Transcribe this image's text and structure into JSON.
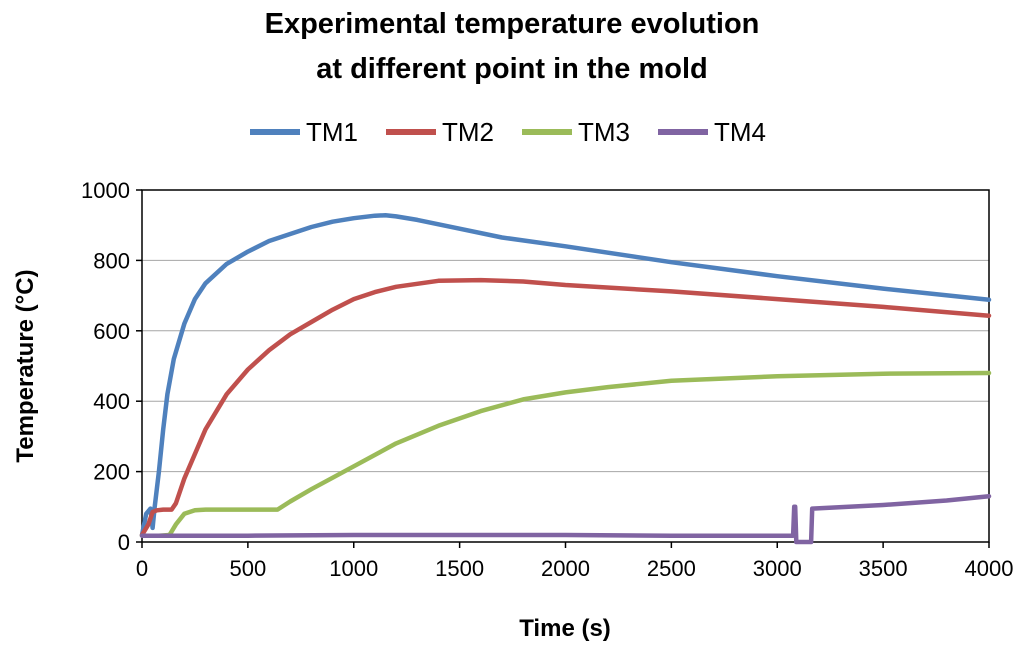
{
  "chart_data": {
    "type": "line",
    "title_lines": [
      "Experimental temperature evolution",
      "at different point in the mold"
    ],
    "xlabel": "Time (s)",
    "ylabel": "Temperature (°C)",
    "xlim": [
      0,
      4000
    ],
    "ylim": [
      0,
      1000
    ],
    "x_ticks": [
      "0",
      "500",
      "1000",
      "1500",
      "2000",
      "2500",
      "3000",
      "3500",
      "4000"
    ],
    "y_ticks": [
      "0",
      "200",
      "400",
      "600",
      "800",
      "1000"
    ],
    "grid": "horizontal",
    "legend_position": "top",
    "series": [
      {
        "name": "TM1",
        "color": "#4f81bd",
        "points": [
          [
            0,
            20
          ],
          [
            20,
            80
          ],
          [
            40,
            95
          ],
          [
            50,
            40
          ],
          [
            60,
            100
          ],
          [
            80,
            200
          ],
          [
            100,
            320
          ],
          [
            120,
            420
          ],
          [
            150,
            520
          ],
          [
            200,
            620
          ],
          [
            250,
            690
          ],
          [
            300,
            735
          ],
          [
            400,
            790
          ],
          [
            500,
            825
          ],
          [
            600,
            855
          ],
          [
            700,
            875
          ],
          [
            800,
            895
          ],
          [
            900,
            910
          ],
          [
            1000,
            920
          ],
          [
            1100,
            927
          ],
          [
            1150,
            928
          ],
          [
            1200,
            925
          ],
          [
            1300,
            915
          ],
          [
            1500,
            890
          ],
          [
            1700,
            865
          ],
          [
            2000,
            840
          ],
          [
            2500,
            795
          ],
          [
            3000,
            755
          ],
          [
            3500,
            720
          ],
          [
            4000,
            688
          ]
        ]
      },
      {
        "name": "TM2",
        "color": "#c0504d",
        "points": [
          [
            0,
            20
          ],
          [
            30,
            50
          ],
          [
            50,
            85
          ],
          [
            70,
            90
          ],
          [
            100,
            92
          ],
          [
            140,
            92
          ],
          [
            160,
            110
          ],
          [
            200,
            180
          ],
          [
            300,
            320
          ],
          [
            400,
            420
          ],
          [
            500,
            490
          ],
          [
            600,
            545
          ],
          [
            700,
            590
          ],
          [
            800,
            625
          ],
          [
            900,
            660
          ],
          [
            1000,
            690
          ],
          [
            1100,
            710
          ],
          [
            1200,
            725
          ],
          [
            1400,
            742
          ],
          [
            1600,
            744
          ],
          [
            1800,
            740
          ],
          [
            2000,
            730
          ],
          [
            2500,
            712
          ],
          [
            3000,
            690
          ],
          [
            3500,
            668
          ],
          [
            4000,
            643
          ]
        ]
      },
      {
        "name": "TM3",
        "color": "#9bbb59",
        "points": [
          [
            0,
            18
          ],
          [
            80,
            18
          ],
          [
            130,
            20
          ],
          [
            160,
            50
          ],
          [
            200,
            80
          ],
          [
            250,
            90
          ],
          [
            300,
            92
          ],
          [
            400,
            92
          ],
          [
            500,
            92
          ],
          [
            640,
            92
          ],
          [
            700,
            115
          ],
          [
            800,
            150
          ],
          [
            1000,
            215
          ],
          [
            1200,
            280
          ],
          [
            1400,
            330
          ],
          [
            1600,
            372
          ],
          [
            1800,
            405
          ],
          [
            2000,
            425
          ],
          [
            2200,
            440
          ],
          [
            2500,
            458
          ],
          [
            3000,
            471
          ],
          [
            3500,
            478
          ],
          [
            4000,
            480
          ]
        ]
      },
      {
        "name": "TM4",
        "color": "#8064a2",
        "points": [
          [
            0,
            18
          ],
          [
            500,
            18
          ],
          [
            1000,
            20
          ],
          [
            1500,
            20
          ],
          [
            2000,
            20
          ],
          [
            2500,
            18
          ],
          [
            3000,
            18
          ],
          [
            3075,
            18
          ],
          [
            3080,
            100
          ],
          [
            3085,
            100
          ],
          [
            3090,
            0
          ],
          [
            3160,
            0
          ],
          [
            3165,
            95
          ],
          [
            3500,
            105
          ],
          [
            3800,
            118
          ],
          [
            4000,
            130
          ]
        ]
      }
    ]
  }
}
